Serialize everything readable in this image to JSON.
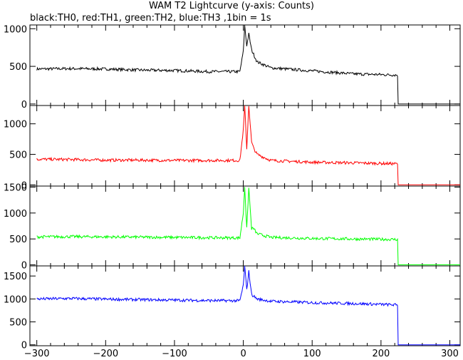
{
  "title": "WAM T2 Lightcurve (y-axis: Counts)",
  "subtitle": "black:TH0, red:TH1, green:TH2, blue:TH3 ,1bin = 1s",
  "chart_data": {
    "type": "line",
    "x_range": [
      -310,
      315
    ],
    "x_ticks": [
      -300,
      -200,
      -100,
      0,
      100,
      200,
      300
    ],
    "x_tick_labels": [
      "−300",
      "−200",
      "−100",
      "0",
      "100",
      "200",
      "300"
    ],
    "cutoff_time": 225,
    "panels": [
      {
        "series": "TH0",
        "color": "#000000",
        "ylim": [
          -20,
          1050
        ],
        "y_ticks": [
          0,
          500,
          1000
        ],
        "y_tick_labels": [
          "0",
          "500",
          "1000"
        ],
        "points": [
          [
            -300,
            465
          ],
          [
            -250,
            470
          ],
          [
            -200,
            465
          ],
          [
            -150,
            450
          ],
          [
            -100,
            445
          ],
          [
            -50,
            430
          ],
          [
            -5,
            430
          ],
          [
            0,
            700
          ],
          [
            2,
            1040
          ],
          [
            5,
            780
          ],
          [
            8,
            930
          ],
          [
            12,
            720
          ],
          [
            20,
            560
          ],
          [
            40,
            480
          ],
          [
            100,
            440
          ],
          [
            160,
            400
          ],
          [
            224,
            385
          ],
          [
            225,
            0
          ],
          [
            315,
            0
          ]
        ]
      },
      {
        "series": "TH1",
        "color": "#ff0000",
        "ylim": [
          -20,
          1300
        ],
        "y_ticks": [
          0,
          500,
          1000
        ],
        "y_tick_labels": [
          "0",
          "500",
          "1000"
        ],
        "points": [
          [
            -300,
            420
          ],
          [
            -250,
            415
          ],
          [
            -200,
            405
          ],
          [
            -150,
            405
          ],
          [
            -100,
            400
          ],
          [
            -50,
            400
          ],
          [
            -5,
            400
          ],
          [
            0,
            900
          ],
          [
            2,
            1300
          ],
          [
            5,
            600
          ],
          [
            8,
            1300
          ],
          [
            12,
            700
          ],
          [
            15,
            600
          ],
          [
            20,
            500
          ],
          [
            40,
            400
          ],
          [
            100,
            370
          ],
          [
            160,
            360
          ],
          [
            224,
            345
          ],
          [
            225,
            0
          ],
          [
            315,
            0
          ]
        ]
      },
      {
        "series": "TH2",
        "color": "#00ff00",
        "ylim": [
          -20,
          1520
        ],
        "y_ticks": [
          0,
          500,
          1000,
          1500
        ],
        "y_tick_labels": [
          "0",
          "500",
          "1000",
          "1500"
        ],
        "points": [
          [
            -300,
            540
          ],
          [
            -250,
            545
          ],
          [
            -200,
            540
          ],
          [
            -150,
            535
          ],
          [
            -100,
            530
          ],
          [
            -50,
            525
          ],
          [
            -5,
            520
          ],
          [
            0,
            1000
          ],
          [
            2,
            1520
          ],
          [
            5,
            700
          ],
          [
            8,
            1480
          ],
          [
            12,
            700
          ],
          [
            15,
            700
          ],
          [
            20,
            600
          ],
          [
            40,
            530
          ],
          [
            100,
            510
          ],
          [
            160,
            500
          ],
          [
            224,
            490
          ],
          [
            225,
            0
          ],
          [
            315,
            0
          ]
        ]
      },
      {
        "series": "TH3",
        "color": "#0000ff",
        "ylim": [
          -20,
          1720
        ],
        "y_ticks": [
          0,
          500,
          1000,
          1500
        ],
        "y_tick_labels": [
          "0",
          "500",
          "1000",
          "1500"
        ],
        "points": [
          [
            -300,
            1000
          ],
          [
            -250,
            1010
          ],
          [
            -200,
            995
          ],
          [
            -150,
            985
          ],
          [
            -100,
            975
          ],
          [
            -50,
            965
          ],
          [
            -5,
            960
          ],
          [
            0,
            1300
          ],
          [
            2,
            1720
          ],
          [
            5,
            1200
          ],
          [
            8,
            1600
          ],
          [
            12,
            1100
          ],
          [
            20,
            1000
          ],
          [
            40,
            950
          ],
          [
            100,
            920
          ],
          [
            160,
            900
          ],
          [
            224,
            870
          ],
          [
            225,
            0
          ],
          [
            315,
            0
          ]
        ]
      }
    ]
  }
}
